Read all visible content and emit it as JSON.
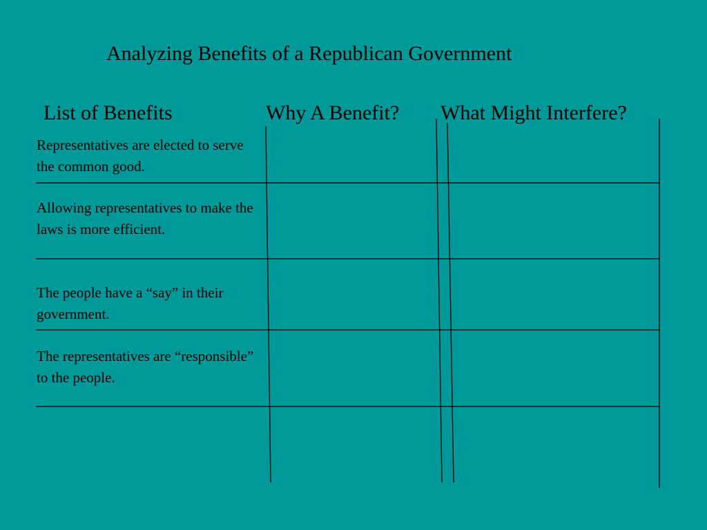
{
  "slide": {
    "background": "#009999",
    "title": "Analyzing Benefits of a Republican Government"
  },
  "table": {
    "headers": [
      "List of Benefits",
      "Why A Benefit?",
      "What Might Interfere?"
    ],
    "rows": [
      {
        "benefit": "Representatives are elected to serve the common good."
      },
      {
        "benefit": "Allowing representatives to make the laws is more efficient."
      },
      {
        "benefit": "The people have a “say” in their government."
      },
      {
        "benefit": "The representatives are “responsible” to the people."
      }
    ]
  }
}
